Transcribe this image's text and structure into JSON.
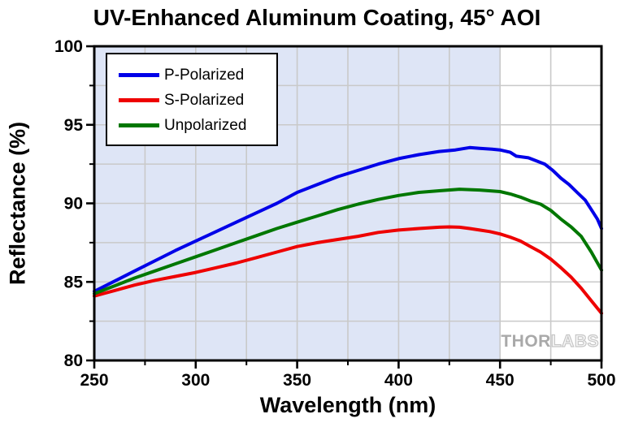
{
  "title": "UV-Enhanced Aluminum Coating, 45° AOI",
  "watermark": {
    "part1": "THOR",
    "part2": "LABS"
  },
  "chart_data": {
    "type": "line",
    "title": "UV-Enhanced Aluminum Coating, 45° AOI",
    "xlabel": "Wavelength (nm)",
    "ylabel": "Reflectance (%)",
    "xlim": [
      250,
      500
    ],
    "ylim": [
      80,
      100
    ],
    "x_major_ticks": [
      250,
      300,
      350,
      400,
      450,
      500
    ],
    "x_minor_step": 25,
    "y_major_ticks": [
      80,
      85,
      90,
      95,
      100
    ],
    "y_minor_step": 2.5,
    "grid": "major and minor, light gray",
    "legend_position": "top-left",
    "frame_color": "#000000",
    "grid_color": "#c9c9c9",
    "shaded_region": {
      "x_start": 250,
      "x_end": 450,
      "color": "#dee5f6"
    },
    "series": [
      {
        "name": "P-Polarized",
        "color": "#0000e8",
        "points": [
          [
            250,
            84.4
          ],
          [
            260,
            85.05
          ],
          [
            270,
            85.7
          ],
          [
            280,
            86.35
          ],
          [
            290,
            87.0
          ],
          [
            300,
            87.6
          ],
          [
            310,
            88.2
          ],
          [
            320,
            88.8
          ],
          [
            330,
            89.4
          ],
          [
            340,
            90.0
          ],
          [
            350,
            90.7
          ],
          [
            360,
            91.2
          ],
          [
            370,
            91.7
          ],
          [
            380,
            92.1
          ],
          [
            390,
            92.5
          ],
          [
            400,
            92.85
          ],
          [
            410,
            93.1
          ],
          [
            420,
            93.3
          ],
          [
            428,
            93.4
          ],
          [
            435,
            93.55
          ],
          [
            440,
            93.5
          ],
          [
            446,
            93.45
          ],
          [
            450,
            93.4
          ],
          [
            455,
            93.25
          ],
          [
            458,
            93.0
          ],
          [
            464,
            92.9
          ],
          [
            468,
            92.7
          ],
          [
            472,
            92.5
          ],
          [
            476,
            92.1
          ],
          [
            480,
            91.6
          ],
          [
            484,
            91.2
          ],
          [
            488,
            90.7
          ],
          [
            492,
            90.2
          ],
          [
            495,
            89.6
          ],
          [
            498,
            89.0
          ],
          [
            500,
            88.4
          ]
        ]
      },
      {
        "name": "S-Polarized",
        "color": "#ee0000",
        "points": [
          [
            250,
            84.1
          ],
          [
            260,
            84.45
          ],
          [
            270,
            84.8
          ],
          [
            280,
            85.1
          ],
          [
            290,
            85.35
          ],
          [
            300,
            85.6
          ],
          [
            310,
            85.9
          ],
          [
            320,
            86.2
          ],
          [
            330,
            86.55
          ],
          [
            340,
            86.9
          ],
          [
            350,
            87.25
          ],
          [
            360,
            87.5
          ],
          [
            370,
            87.7
          ],
          [
            380,
            87.9
          ],
          [
            390,
            88.15
          ],
          [
            400,
            88.3
          ],
          [
            410,
            88.4
          ],
          [
            420,
            88.48
          ],
          [
            425,
            88.5
          ],
          [
            430,
            88.48
          ],
          [
            435,
            88.4
          ],
          [
            440,
            88.3
          ],
          [
            445,
            88.2
          ],
          [
            450,
            88.05
          ],
          [
            455,
            87.85
          ],
          [
            460,
            87.6
          ],
          [
            465,
            87.25
          ],
          [
            470,
            86.9
          ],
          [
            475,
            86.45
          ],
          [
            480,
            85.9
          ],
          [
            485,
            85.3
          ],
          [
            490,
            84.6
          ],
          [
            495,
            83.8
          ],
          [
            500,
            83.0
          ]
        ]
      },
      {
        "name": "Unpolarized",
        "color": "#007700",
        "points": [
          [
            250,
            84.25
          ],
          [
            260,
            84.75
          ],
          [
            270,
            85.25
          ],
          [
            280,
            85.7
          ],
          [
            290,
            86.15
          ],
          [
            300,
            86.6
          ],
          [
            310,
            87.05
          ],
          [
            320,
            87.5
          ],
          [
            330,
            87.95
          ],
          [
            340,
            88.4
          ],
          [
            350,
            88.8
          ],
          [
            360,
            89.2
          ],
          [
            370,
            89.6
          ],
          [
            380,
            89.95
          ],
          [
            390,
            90.25
          ],
          [
            400,
            90.5
          ],
          [
            410,
            90.7
          ],
          [
            420,
            90.8
          ],
          [
            430,
            90.9
          ],
          [
            440,
            90.85
          ],
          [
            450,
            90.75
          ],
          [
            455,
            90.6
          ],
          [
            460,
            90.4
          ],
          [
            465,
            90.15
          ],
          [
            470,
            89.95
          ],
          [
            475,
            89.55
          ],
          [
            480,
            89.0
          ],
          [
            485,
            88.5
          ],
          [
            490,
            87.9
          ],
          [
            495,
            86.9
          ],
          [
            500,
            85.75
          ]
        ]
      }
    ]
  }
}
